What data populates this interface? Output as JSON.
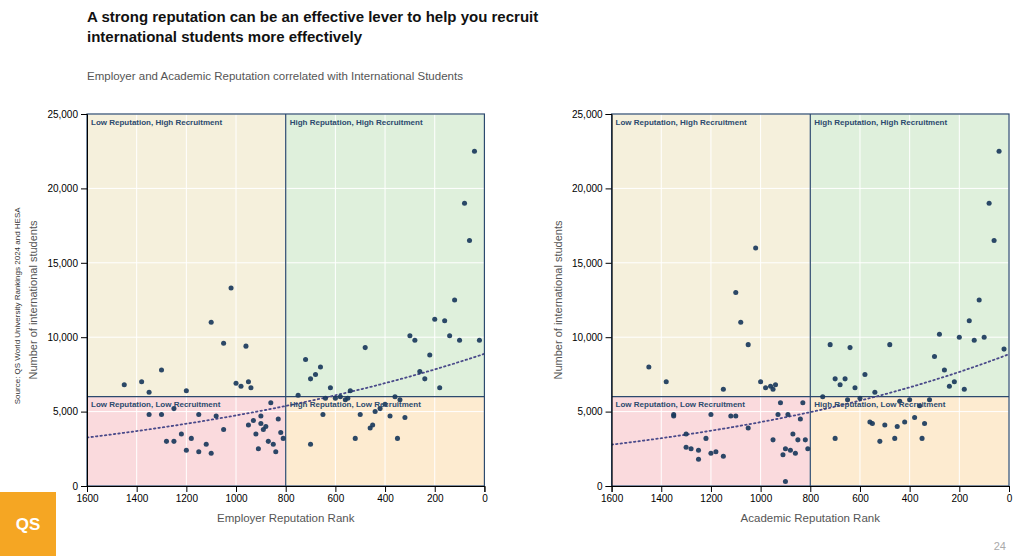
{
  "title": [
    "A strong reputation can be an effective lever to help you recruit",
    "international students more effectively"
  ],
  "subtitle": "Employer and Academic Reputation correlated with International Students",
  "source": "Source: QS World University Rankings 2024 and HESA",
  "footer": "24",
  "logo": {
    "text": "QS",
    "color": "#f5a623"
  },
  "chart_data": [
    {
      "type": "scatter",
      "x_label": "Employer Reputation Rank",
      "y_label": "Number of international students",
      "xlim": [
        1600,
        0
      ],
      "ylim": [
        0,
        25000
      ],
      "xticks": [
        1600,
        1400,
        1200,
        1000,
        800,
        600,
        400,
        200,
        0
      ],
      "yticks": [
        0,
        {
          "value": 5000,
          "label": "5,000"
        },
        {
          "value": 10000,
          "label": "10,000"
        },
        {
          "value": 15000,
          "label": "15,000"
        },
        {
          "value": 20000,
          "label": "20,000"
        },
        {
          "value": 25000,
          "label": "25,000"
        }
      ],
      "grid": true,
      "reference_lines": {
        "x": 800,
        "y": 6000,
        "color": "#2c4a6e"
      },
      "quadrant_colors": [
        "#f5f0dc",
        "#dff0dc",
        "#fadadd",
        "#fdebd0"
      ],
      "annotations": [
        {
          "text": "Low Reputation, High Recruitment",
          "color": "#2c4a6e"
        },
        {
          "text": "High Reputation, High Recruitment",
          "color": "#2c4a6e"
        },
        {
          "text": "Low Reputation, Low Recruitment",
          "color": "#2c4a6e"
        },
        {
          "text": "High Reputation, Low Recruitment",
          "color": "#2c4a6e"
        }
      ],
      "trend": {
        "type": "exponential",
        "line_style": "dotted",
        "color": "#4a4a8a"
      },
      "series": [
        {
          "color": "#1a3a5c",
          "marker": "circle",
          "x": [
            1450,
            1380,
            1350,
            1300,
            1280,
            1250,
            1220,
            1200,
            1180,
            1150,
            1120,
            1100,
            1080,
            1050,
            1020,
            1000,
            980,
            960,
            950,
            940,
            930,
            920,
            910,
            900,
            890,
            880,
            870,
            860,
            850,
            840,
            830,
            820,
            810,
            1350,
            1300,
            1250,
            1200,
            1150,
            1100,
            900,
            950,
            1050,
            750,
            720,
            700,
            680,
            660,
            640,
            620,
            600,
            580,
            560,
            540,
            520,
            500,
            480,
            460,
            440,
            420,
            400,
            380,
            360,
            340,
            320,
            300,
            280,
            260,
            240,
            220,
            200,
            180,
            160,
            140,
            120,
            100,
            80,
            60,
            40,
            20,
            700,
            650,
            550,
            450,
            350
          ],
          "values": [
            6800,
            7000,
            6300,
            7800,
            3000,
            5200,
            3500,
            6400,
            3200,
            4800,
            2800,
            11000,
            4700,
            9600,
            13300,
            6900,
            6700,
            9400,
            7000,
            6600,
            4400,
            3500,
            2500,
            4200,
            3800,
            4000,
            3000,
            5600,
            2800,
            2300,
            4500,
            3600,
            3200,
            4800,
            4800,
            3000,
            2400,
            2300,
            2200,
            4700,
            4100,
            3800,
            6100,
            8500,
            7200,
            7500,
            8000,
            5900,
            6600,
            5900,
            6000,
            5800,
            6400,
            3200,
            4800,
            9300,
            3900,
            5000,
            5200,
            5500,
            4700,
            6000,
            5800,
            4600,
            10100,
            9800,
            7700,
            7200,
            8800,
            11200,
            6600,
            11100,
            10100,
            12500,
            9800,
            19000,
            16500,
            22500,
            9800,
            2800,
            4800,
            5900,
            4100,
            3200
          ]
        }
      ]
    },
    {
      "type": "scatter",
      "x_label": "Academic Reputation Rank",
      "y_label": "Number of international students",
      "xlim": [
        1600,
        0
      ],
      "ylim": [
        0,
        25000
      ],
      "xticks": [
        1600,
        1400,
        1200,
        1000,
        800,
        600,
        400,
        200,
        0
      ],
      "yticks": [
        0,
        {
          "value": 5000,
          "label": "5,000"
        },
        {
          "value": 10000,
          "label": "10,000"
        },
        {
          "value": 15000,
          "label": "15,000"
        },
        {
          "value": 20000,
          "label": "20,000"
        },
        {
          "value": 25000,
          "label": "25,000"
        }
      ],
      "grid": true,
      "reference_lines": {
        "x": 800,
        "y": 6000,
        "color": "#2c4a6e"
      },
      "quadrant_colors": [
        "#f5f0dc",
        "#dff0dc",
        "#fadadd",
        "#fdebd0"
      ],
      "annotations": [
        {
          "text": "Low Reputation, High Recruitment",
          "color": "#2c4a6e"
        },
        {
          "text": "High Reputation, High Recruitment",
          "color": "#2c4a6e"
        },
        {
          "text": "Low Reputation, Low Recruitment",
          "color": "#2c4a6e"
        },
        {
          "text": "High Reputation, Low Recruitment",
          "color": "#2c4a6e"
        }
      ],
      "trend": {
        "type": "exponential",
        "line_style": "dotted",
        "color": "#4a4a8a"
      },
      "series": [
        {
          "color": "#1a3a5c",
          "marker": "circle",
          "x": [
            1450,
            1380,
            1350,
            1300,
            1280,
            1250,
            1220,
            1200,
            1180,
            1150,
            1120,
            1100,
            1080,
            1050,
            1020,
            1000,
            980,
            960,
            950,
            940,
            930,
            920,
            910,
            900,
            890,
            880,
            870,
            860,
            850,
            840,
            830,
            820,
            810,
            1350,
            1300,
            1250,
            1200,
            1150,
            1100,
            900,
            950,
            1050,
            750,
            720,
            700,
            680,
            660,
            640,
            620,
            600,
            580,
            560,
            540,
            520,
            500,
            480,
            460,
            440,
            420,
            400,
            380,
            360,
            340,
            320,
            300,
            280,
            260,
            240,
            220,
            200,
            180,
            160,
            140,
            120,
            100,
            80,
            60,
            40,
            20,
            700,
            650,
            550,
            450,
            350
          ],
          "values": [
            8000,
            7000,
            4700,
            3500,
            2500,
            1800,
            3200,
            4800,
            2300,
            6500,
            4700,
            13000,
            11000,
            9500,
            16000,
            7000,
            6600,
            6700,
            6500,
            6800,
            4800,
            5600,
            2100,
            300,
            4800,
            2400,
            3500,
            2200,
            3100,
            4500,
            5600,
            3100,
            2500,
            4800,
            2600,
            2400,
            2200,
            2000,
            4700,
            2500,
            3100,
            3900,
            6000,
            9500,
            7200,
            6800,
            7200,
            9300,
            6600,
            5900,
            7500,
            4300,
            6300,
            3000,
            4100,
            9500,
            3200,
            5700,
            4300,
            5800,
            4600,
            5400,
            4200,
            5800,
            8700,
            10200,
            7800,
            6700,
            7000,
            10000,
            6500,
            11100,
            9800,
            12500,
            10000,
            19000,
            16500,
            22500,
            9200,
            3200,
            5800,
            4200,
            4000,
            3200
          ]
        }
      ]
    }
  ]
}
